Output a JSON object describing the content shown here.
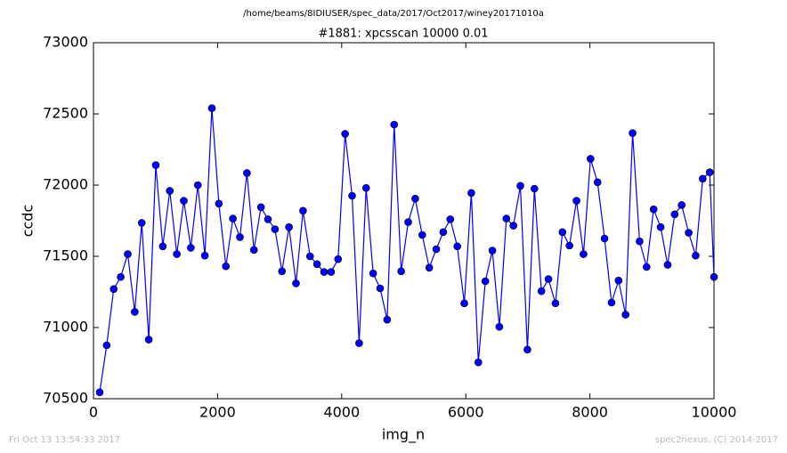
{
  "chart_data": {
    "type": "line",
    "suptitle": "/home/beams/8IDIUSER/spec_data/2017/Oct2017/winey20171010a",
    "title": "#1881: xpcsscan 10000 0.01",
    "xlabel": "img_n",
    "ylabel": "ccdc",
    "footer_left": "Fri Oct 13 13:54:33 2017",
    "footer_right": "spec2nexus, (C) 2014-2017",
    "xlim": [
      0,
      10000
    ],
    "xticks": [
      0,
      2000,
      4000,
      6000,
      8000,
      10000
    ],
    "ylim": [
      70500,
      73000
    ],
    "yticks": [
      70500,
      71000,
      71500,
      72000,
      72500,
      73000
    ],
    "grid": false,
    "series": [
      {
        "color": "#0000ff",
        "x": [
          100,
          213,
          326,
          439,
          552,
          665,
          778,
          891,
          1004,
          1117,
          1230,
          1343,
          1456,
          1569,
          1682,
          1795,
          1908,
          2021,
          2134,
          2247,
          2360,
          2473,
          2586,
          2699,
          2812,
          2925,
          3038,
          3151,
          3264,
          3377,
          3490,
          3603,
          3716,
          3829,
          3942,
          4055,
          4168,
          4281,
          4394,
          4507,
          4620,
          4733,
          4846,
          4959,
          5072,
          5185,
          5298,
          5411,
          5524,
          5637,
          5750,
          5863,
          5976,
          6089,
          6202,
          6315,
          6428,
          6541,
          6654,
          6767,
          6880,
          6993,
          7106,
          7219,
          7332,
          7445,
          7558,
          7671,
          7784,
          7897,
          8010,
          8123,
          8236,
          8349,
          8462,
          8575,
          8688,
          8801,
          8914,
          9027,
          9140,
          9253,
          9366,
          9479,
          9592,
          9705,
          9818,
          9931,
          10000
        ],
        "values": [
          70545,
          70875,
          71270,
          71355,
          71515,
          71110,
          71735,
          70915,
          72140,
          71570,
          71960,
          71515,
          71890,
          71560,
          72000,
          71505,
          72540,
          71870,
          71430,
          71765,
          71635,
          72085,
          71545,
          71845,
          71760,
          71690,
          71395,
          71705,
          71310,
          71820,
          71500,
          71445,
          71390,
          71390,
          71480,
          72360,
          71925,
          70890,
          71980,
          71380,
          71275,
          71055,
          72425,
          71395,
          71740,
          71905,
          71650,
          71420,
          71550,
          71670,
          71760,
          71570,
          71170,
          71945,
          70755,
          71325,
          71540,
          71005,
          71765,
          71715,
          71995,
          70845,
          71975,
          71255,
          71340,
          71170,
          71670,
          71575,
          71890,
          71515,
          72185,
          72020,
          71625,
          71175,
          71330,
          71090,
          72365,
          71605,
          71425,
          71830,
          71705,
          71440,
          71795,
          71860,
          71665,
          71505,
          72045,
          72090,
          71355
        ]
      }
    ]
  }
}
